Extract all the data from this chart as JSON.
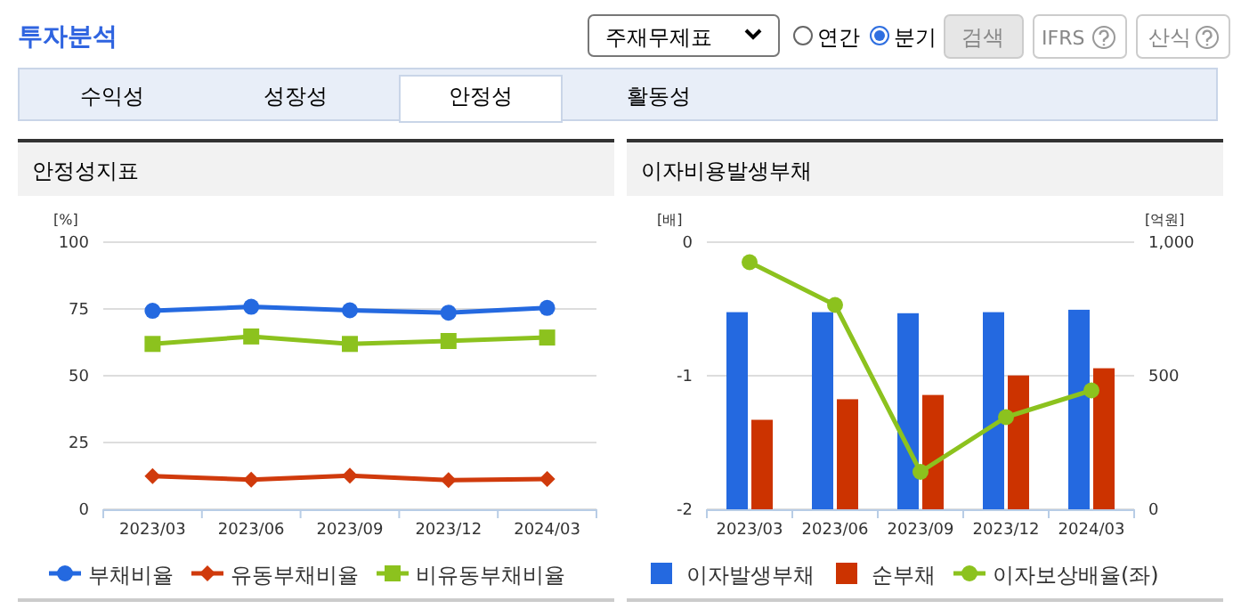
{
  "chart_data": [
    {
      "type": "other",
      "title": "투자분석",
      "annotations": [
        "주재무제표",
        "연간",
        "분기",
        "검색",
        "IFRS",
        "산식",
        "수익성",
        "성장성",
        "안정성",
        "활동성"
      ]
    },
    {
      "type": "line",
      "title": "안정성지표",
      "ylabel": "[%]",
      "categories": [
        "2023/03",
        "2023/06",
        "2023/09",
        "2023/12",
        "2024/03"
      ],
      "ylim": [
        0,
        100
      ],
      "yticks": [
        0,
        25,
        50,
        75,
        100
      ],
      "grid": "y",
      "legend": "bottom",
      "series": [
        {
          "name": "부채비율",
          "color": "#2469e0",
          "marker": "circle",
          "values": [
            74.3,
            75.8,
            74.5,
            73.6,
            75.4
          ]
        },
        {
          "name": "유동부채비율",
          "color": "#d03a0c",
          "marker": "diamond",
          "values": [
            12.4,
            11.1,
            12.6,
            10.9,
            11.3
          ]
        },
        {
          "name": "비유동부채비율",
          "color": "#8cc21e",
          "marker": "square",
          "values": [
            61.9,
            64.7,
            61.9,
            63,
            64.3
          ]
        }
      ]
    },
    {
      "type": "bar",
      "title": "이자비용발생부채",
      "ylabel": "[배]",
      "y2label": "[억원]",
      "categories": [
        "2023/03",
        "2023/06",
        "2023/09",
        "2023/12",
        "2024/03"
      ],
      "ylim": [
        -2,
        0
      ],
      "yticks": [
        -2,
        -1,
        0
      ],
      "y2lim": [
        0,
        1000
      ],
      "y2ticks": [
        0,
        500,
        {
          "value": 1000,
          "label": "1,000"
        }
      ],
      "grid": "y",
      "legend": "bottom",
      "series": [
        {
          "name": "이자발생부채",
          "color": "#2469e0",
          "axis": "y2",
          "values": [
            738,
            738,
            734,
            738,
            747
          ]
        },
        {
          "name": "순부채",
          "color": "#cc3300",
          "axis": "y2",
          "values": [
            335,
            412,
            428,
            501,
            528
          ]
        },
        {
          "name": "이자보상배율(좌)",
          "type": "line",
          "marker": "circle",
          "color": "#8cc21e",
          "values": [
            -0.15,
            -0.47,
            -1.72,
            -1.31,
            -1.11
          ]
        }
      ]
    }
  ]
}
